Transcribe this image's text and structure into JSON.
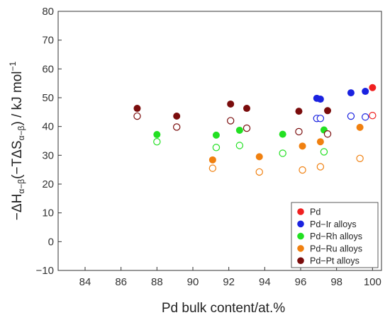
{
  "chart_data": {
    "type": "scatter",
    "xlabel": "Pd bulk content/at.%",
    "ylabel": {
      "minus": "−",
      "dh": "ΔH",
      "sub1": "α−β",
      "paren_open": "(−TΔS",
      "sub2": "α−β",
      "paren_close": ") / kJ mol",
      "sup": "−1"
    },
    "xlim": [
      82.5,
      100.5
    ],
    "ylim": [
      -10,
      80
    ],
    "xticks": [
      "84",
      "86",
      "88",
      "90",
      "92",
      "94",
      "96",
      "98",
      "100"
    ],
    "yticks": [
      "−10",
      "0",
      "10",
      "20",
      "30",
      "40",
      "50",
      "60",
      "70",
      "80"
    ],
    "legend_position": "bottom-right",
    "series": [
      {
        "name": "Pd",
        "color": "#f02020",
        "filled": [
          [
            100.0,
            53.5
          ]
        ],
        "open": [
          [
            100.0,
            43.8
          ]
        ]
      },
      {
        "name": "Pd−Ir alloys",
        "color": "#1a22e0",
        "filled": [
          [
            96.9,
            49.8
          ],
          [
            97.1,
            49.5
          ],
          [
            98.8,
            51.7
          ],
          [
            99.6,
            52.2
          ]
        ],
        "open": [
          [
            96.9,
            42.8
          ],
          [
            97.1,
            42.8
          ],
          [
            98.8,
            43.6
          ],
          [
            99.6,
            43.3
          ]
        ]
      },
      {
        "name": "Pd−Rh alloys",
        "color": "#22e022",
        "filled": [
          [
            88.0,
            37.2
          ],
          [
            91.3,
            37.0
          ],
          [
            92.6,
            38.7
          ],
          [
            95.0,
            37.3
          ],
          [
            97.3,
            38.8
          ]
        ],
        "open": [
          [
            88.0,
            34.7
          ],
          [
            91.3,
            32.7
          ],
          [
            92.6,
            33.4
          ],
          [
            95.0,
            30.7
          ],
          [
            97.3,
            31.2
          ]
        ]
      },
      {
        "name": "Pd−Ru alloys",
        "color": "#f08010",
        "filled": [
          [
            91.1,
            28.4
          ],
          [
            93.7,
            29.5
          ],
          [
            96.1,
            33.2
          ],
          [
            97.1,
            34.7
          ],
          [
            99.3,
            39.7
          ]
        ],
        "open": [
          [
            91.1,
            25.5
          ],
          [
            93.7,
            24.2
          ],
          [
            96.1,
            24.9
          ],
          [
            97.1,
            26.0
          ],
          [
            99.3,
            28.9
          ]
        ]
      },
      {
        "name": "Pd−Pt alloys",
        "color": "#7a0c0c",
        "filled": [
          [
            86.9,
            46.3
          ],
          [
            89.1,
            43.6
          ],
          [
            92.1,
            47.8
          ],
          [
            93.0,
            46.3
          ],
          [
            95.9,
            45.3
          ],
          [
            97.5,
            45.5
          ]
        ],
        "open": [
          [
            86.9,
            43.6
          ],
          [
            89.1,
            39.8
          ],
          [
            92.1,
            42.0
          ],
          [
            93.0,
            39.4
          ],
          [
            95.9,
            38.2
          ],
          [
            97.5,
            37.4
          ]
        ]
      }
    ]
  }
}
